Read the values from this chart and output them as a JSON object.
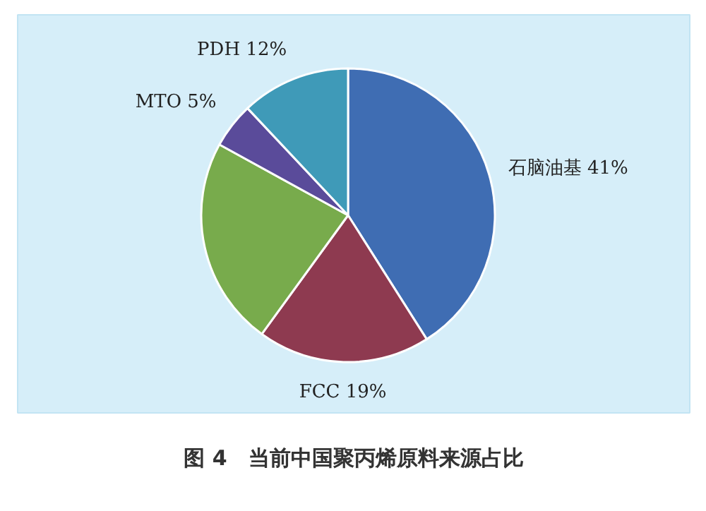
{
  "chart_data": {
    "type": "pie",
    "title": "图 4　当前中国聚丙烯原料来源占比",
    "categories": [
      "石脑油基",
      "FCC",
      null,
      "MTO",
      "PDH"
    ],
    "values": [
      41,
      19,
      23,
      5,
      12
    ],
    "value_labels": [
      "41%",
      "19%",
      null,
      "5%",
      "12%"
    ],
    "colors": [
      "#3f6db3",
      "#8e3a50",
      "#78ab4c",
      "#5a4b9a",
      "#3f9ab8"
    ]
  }
}
